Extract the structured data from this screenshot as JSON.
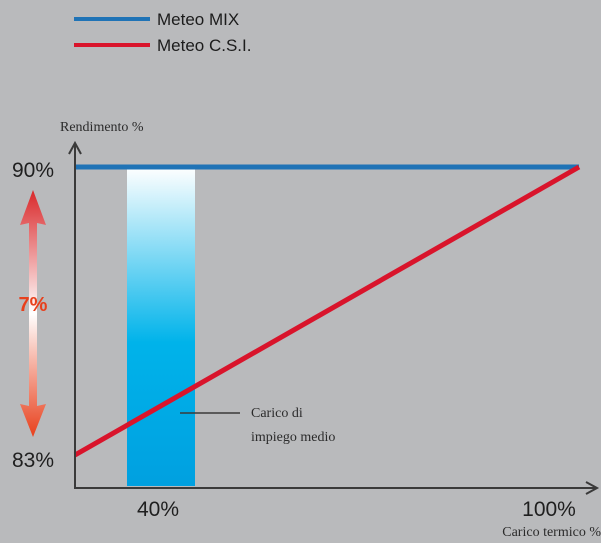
{
  "chart_data": {
    "type": "line",
    "series": [
      {
        "name": "Meteo MIX",
        "color": "#1f73b6",
        "x": [
          0,
          100
        ],
        "y": [
          90,
          90
        ]
      },
      {
        "name": "Meteo C.S.I.",
        "color": "#d9142b",
        "x": [
          0,
          100
        ],
        "y": [
          83,
          90
        ]
      }
    ],
    "ylabel": "Rendimento %",
    "xlabel": "Carico termico %",
    "xticks": [
      {
        "value": 40,
        "label": "40%"
      },
      {
        "value": 100,
        "label": "100%"
      }
    ],
    "yticks": [
      {
        "value": 90,
        "label": "90%"
      },
      {
        "value": 83,
        "label": "83%"
      }
    ],
    "xlim": [
      0,
      100
    ],
    "ylim": [
      83,
      90
    ],
    "highlight_band": {
      "label_line1": "Carico di",
      "label_line2": "impiego medio",
      "colors": [
        "#ffffff",
        "#00a0e0"
      ]
    },
    "difference": {
      "label": "7%",
      "color": "#e8401c"
    },
    "legend_position": "top-left",
    "grid": false
  }
}
